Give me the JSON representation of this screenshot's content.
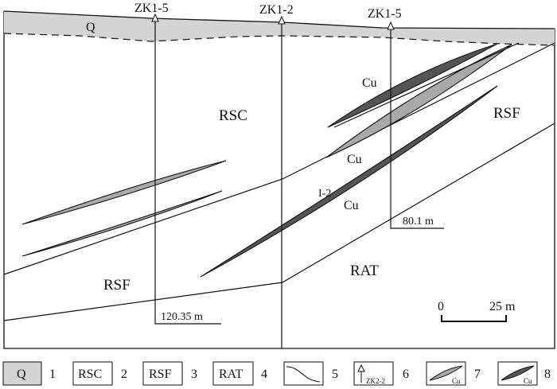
{
  "drillholes": [
    {
      "label": "ZK1-5",
      "depth_label": "120.35 m"
    },
    {
      "label": "ZK1-2",
      "depth_label": ""
    },
    {
      "label": "ZK1-5",
      "depth_label": "80.1 m"
    }
  ],
  "units": {
    "Q": "Q",
    "RSC": "RSC",
    "RSF_upper": "RSF",
    "RSF_lower": "RSF",
    "RAT": "RAT"
  },
  "orebodies": {
    "upper_dark": "Cu",
    "middle_gray": "Cu",
    "main_id": "I-2",
    "main_cu": "Cu"
  },
  "scale_bar": {
    "start": "0",
    "end": "25 m"
  },
  "legend": [
    {
      "symbol": "Q",
      "number": "1"
    },
    {
      "symbol": "RSC",
      "number": "2"
    },
    {
      "symbol": "RSF",
      "number": "3"
    },
    {
      "symbol": "RAT",
      "number": "4"
    },
    {
      "symbol": "",
      "number": "5"
    },
    {
      "symbol": "ZK2-2",
      "number": "6"
    },
    {
      "symbol": "Cu",
      "number": "7"
    },
    {
      "symbol": "Cu",
      "number": "8"
    }
  ],
  "colors": {
    "quaternary": "#d4d4d4",
    "ore_light": "#a9a9a9",
    "ore_dark": "#555555",
    "line": "#111111"
  }
}
